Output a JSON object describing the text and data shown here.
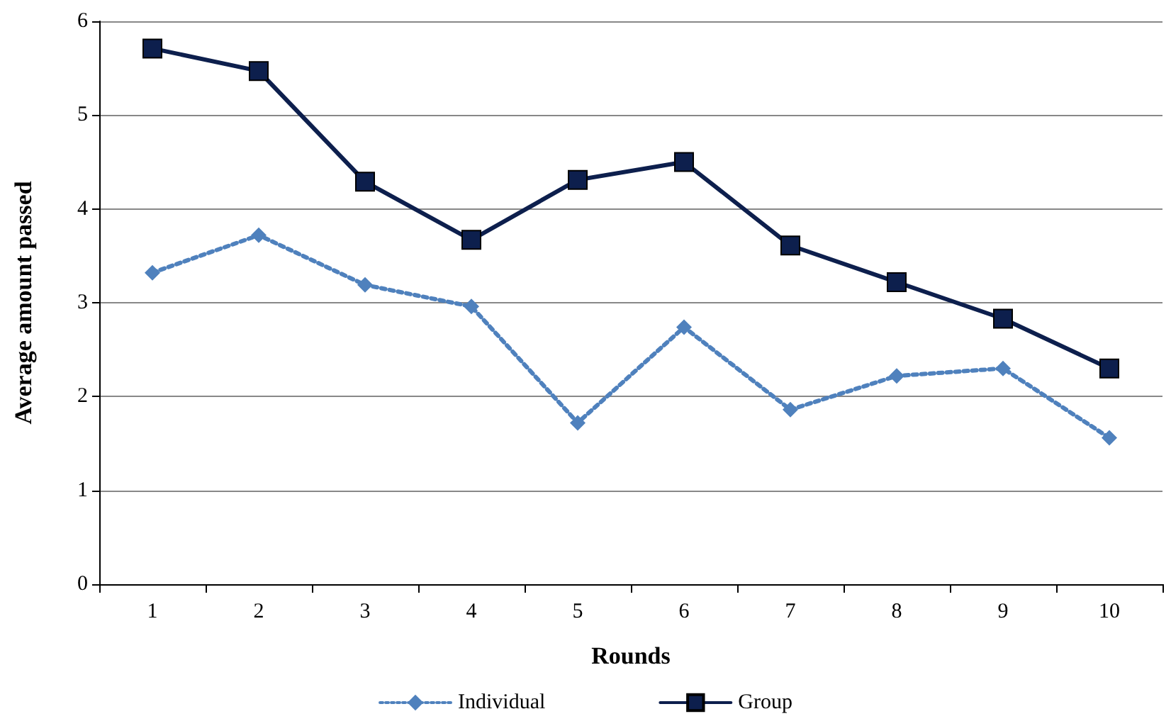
{
  "chart_data": {
    "type": "line",
    "xlabel": "Rounds",
    "ylabel": "Average amount passed",
    "categories": [
      "1",
      "2",
      "3",
      "4",
      "5",
      "6",
      "7",
      "8",
      "9",
      "10"
    ],
    "series": [
      {
        "name": "Individual",
        "color": "#4f81bd",
        "marker": "diamond",
        "line_style": "dotted",
        "values": [
          3.32,
          3.72,
          3.19,
          2.96,
          1.72,
          2.74,
          1.86,
          2.22,
          2.3,
          1.56
        ]
      },
      {
        "name": "Group",
        "color": "#0d1f4d",
        "marker": "square",
        "line_style": "solid",
        "values": [
          5.71,
          5.47,
          4.29,
          3.67,
          4.31,
          4.5,
          3.61,
          3.22,
          2.83,
          2.3
        ]
      }
    ],
    "ylim": [
      0,
      6
    ],
    "yticks": [
      0,
      1,
      2,
      3,
      4,
      5,
      6
    ],
    "grid": "y",
    "legend": "bottom"
  }
}
